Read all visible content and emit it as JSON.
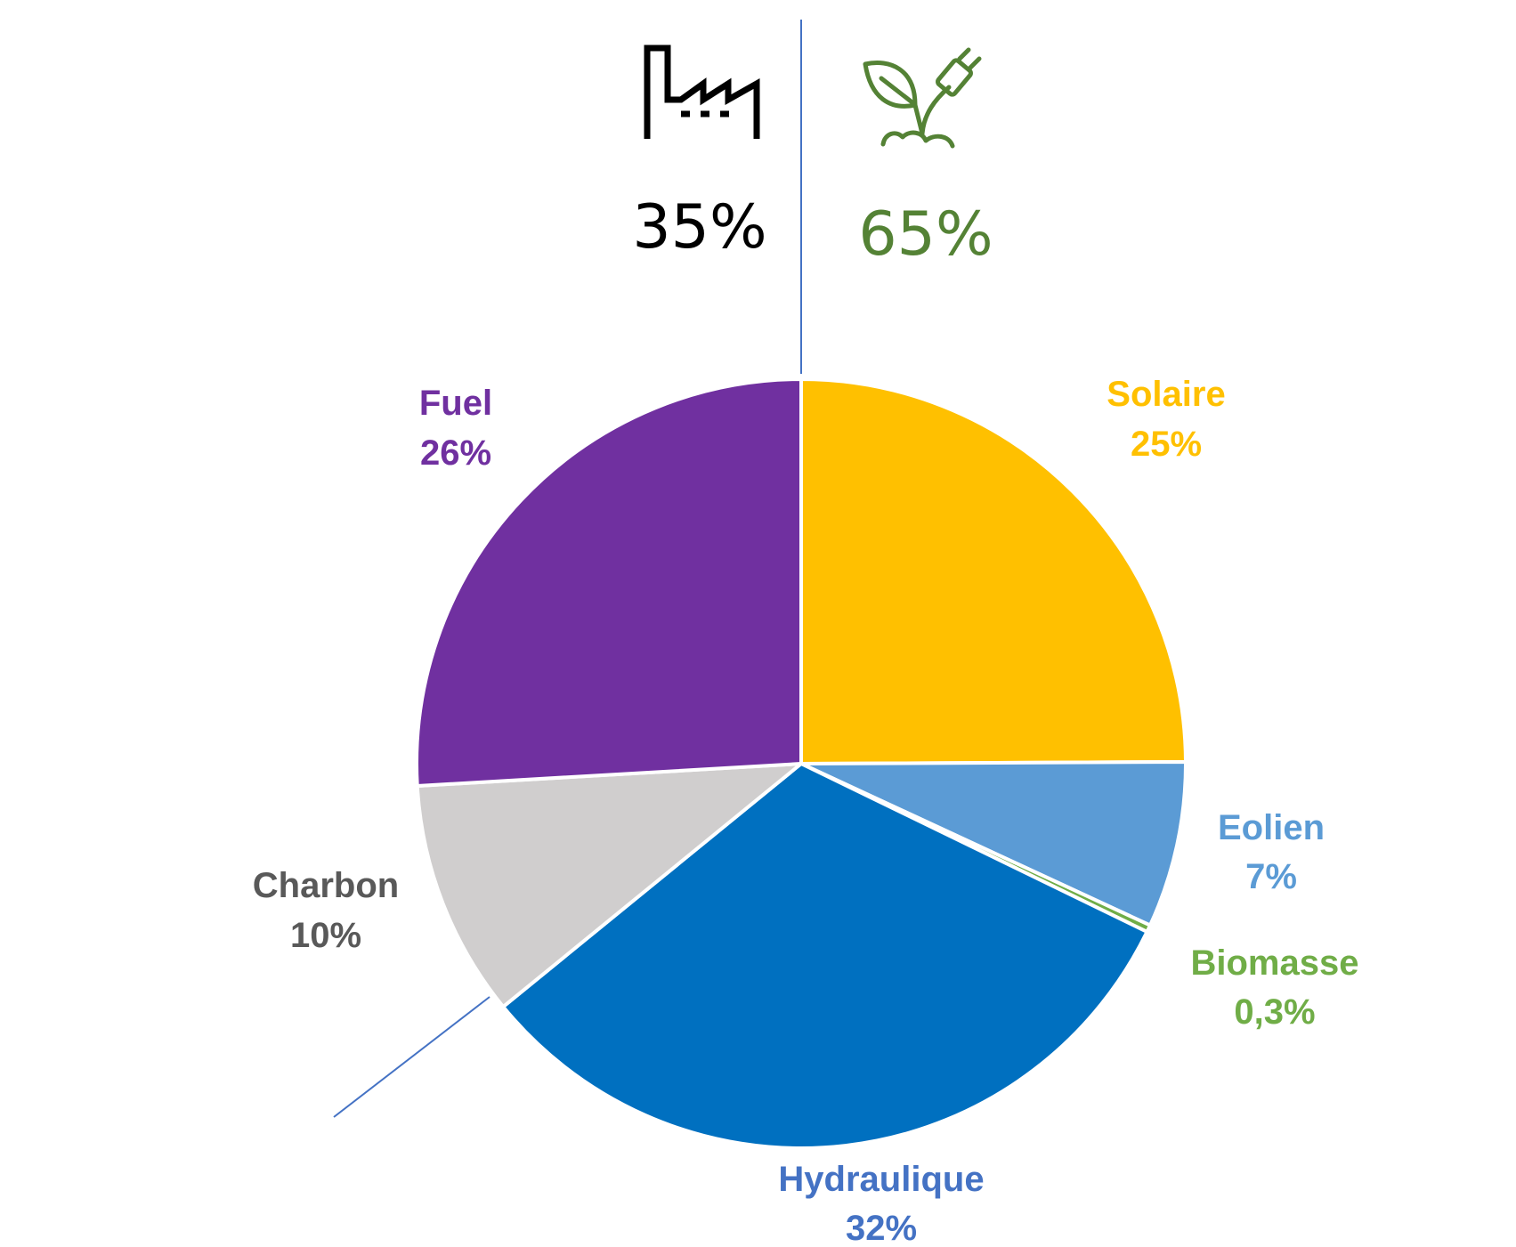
{
  "chart_data": {
    "type": "pie",
    "unit": "%",
    "slices": [
      {
        "name": "Solaire",
        "value": 25,
        "label": "25%",
        "color": "#FFC000"
      },
      {
        "name": "Eolien",
        "value": 7,
        "label": "7%",
        "color": "#5B9BD5"
      },
      {
        "name": "Biomasse",
        "value": 0.3,
        "label": "0,3%",
        "color": "#70AD47"
      },
      {
        "name": "Hydraulique",
        "value": 32,
        "label": "32%",
        "color": "#0070C0",
        "label_color": "#4472C4"
      },
      {
        "name": "Charbon",
        "value": 10,
        "label": "10%",
        "color": "#D0CECE",
        "label_color": "#595959"
      },
      {
        "name": "Fuel",
        "value": 26,
        "label": "26%",
        "color": "#7030A0"
      }
    ],
    "groups": [
      {
        "icon": "factory-icon",
        "value": 35,
        "label": "35%",
        "color": "#000000"
      },
      {
        "icon": "plant-plug-icon",
        "value": 65,
        "label": "65%",
        "color": "#548235"
      }
    ],
    "divider_color": "#4472C4"
  }
}
